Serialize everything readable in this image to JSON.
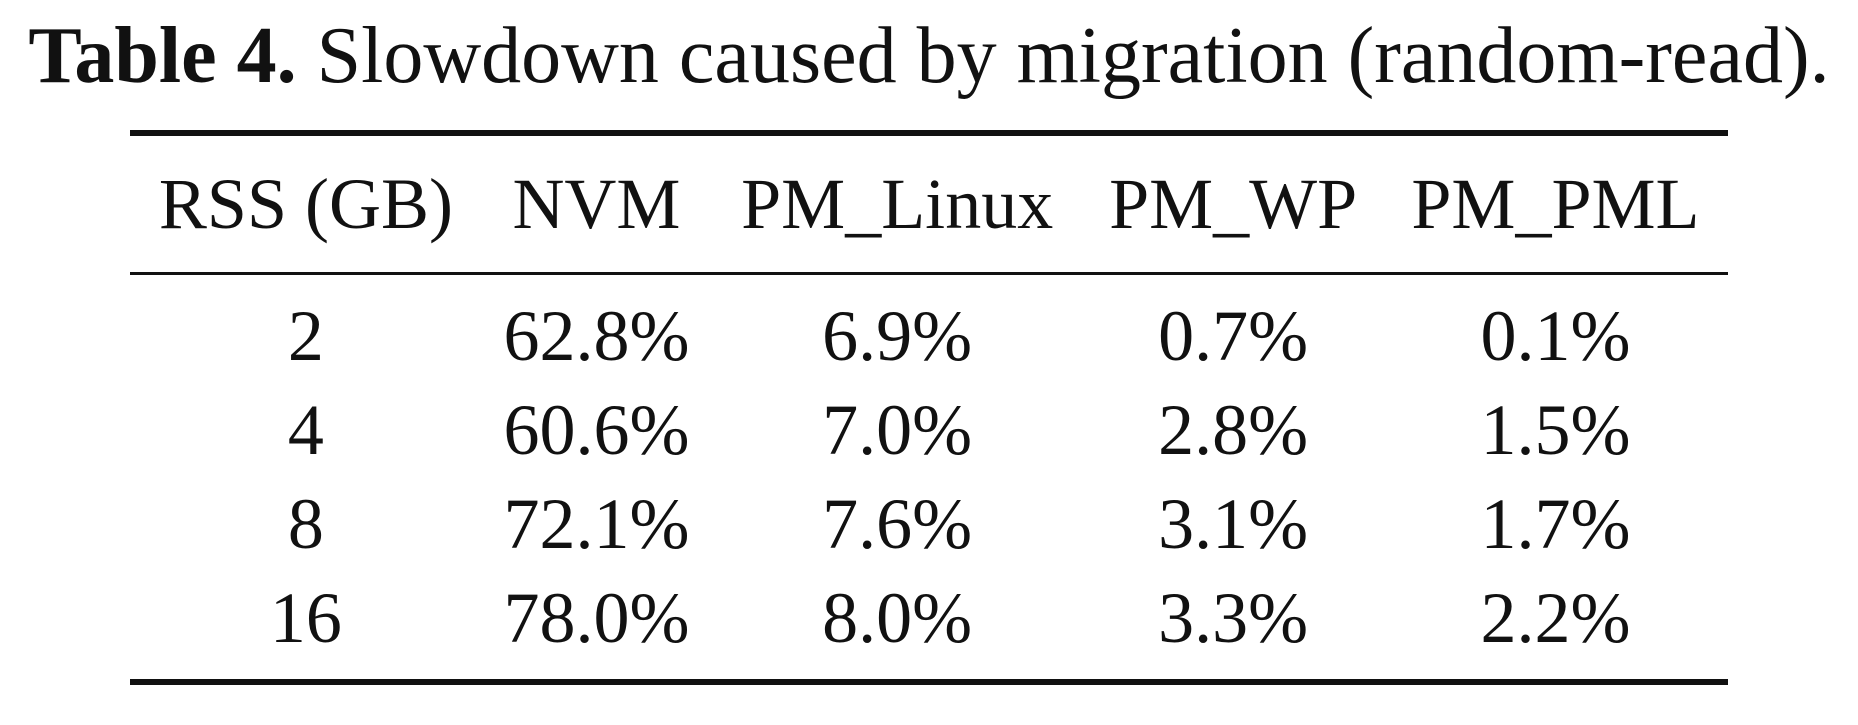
{
  "caption": {
    "label": "Table 4.",
    "text": "Slowdown caused by migration (random-read)."
  },
  "table": {
    "headers": [
      "RSS (GB)",
      "NVM",
      "PM_Linux",
      "PM_WP",
      "PM_PML"
    ],
    "rows": [
      [
        "2",
        "62.8%",
        "6.9%",
        "0.7%",
        "0.1%"
      ],
      [
        "4",
        "60.6%",
        "7.0%",
        "2.8%",
        "1.5%"
      ],
      [
        "8",
        "72.1%",
        "7.6%",
        "3.1%",
        "1.7%"
      ],
      [
        "16",
        "78.0%",
        "8.0%",
        "3.3%",
        "2.2%"
      ]
    ]
  }
}
